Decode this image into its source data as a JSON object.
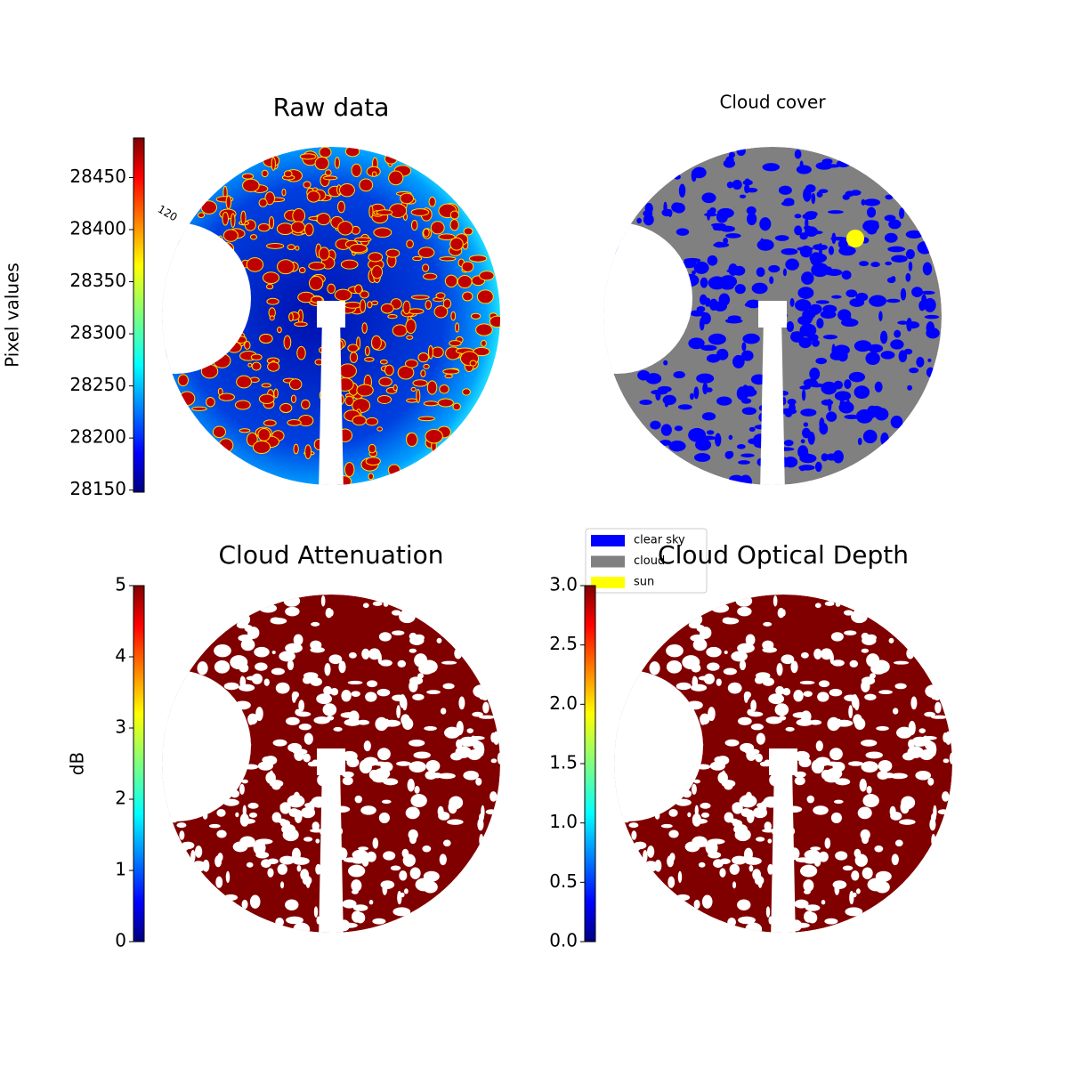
{
  "chart_data": [
    {
      "type": "image",
      "title": "Raw data",
      "ylabel": "Pixel values",
      "annotation": "120",
      "ylim": [
        28148,
        28488
      ],
      "yticks": [
        28150,
        28200,
        28250,
        28300,
        28350,
        28400,
        28450
      ]
    },
    {
      "type": "image",
      "title": "Cloud cover",
      "legend": [
        {
          "name": "clear sky",
          "color": "#0000ff"
        },
        {
          "name": "cloud",
          "color": "#808080"
        },
        {
          "name": "sun",
          "color": "#ffff00"
        }
      ]
    },
    {
      "type": "image",
      "title": "Cloud Attenuation",
      "ylabel": "dB",
      "ylim": [
        0,
        5
      ],
      "yticks": [
        0,
        1,
        2,
        3,
        4,
        5
      ]
    },
    {
      "type": "image",
      "title": "Cloud Optical Depth",
      "ylim": [
        0,
        3
      ],
      "yticks": [
        {
          "value": 0,
          "label": "0.0"
        },
        0.5,
        {
          "value": 1,
          "label": "1.0"
        },
        1.5,
        {
          "value": 2,
          "label": "2.0"
        },
        2.5,
        {
          "value": 3,
          "label": "3.0"
        }
      ]
    }
  ]
}
